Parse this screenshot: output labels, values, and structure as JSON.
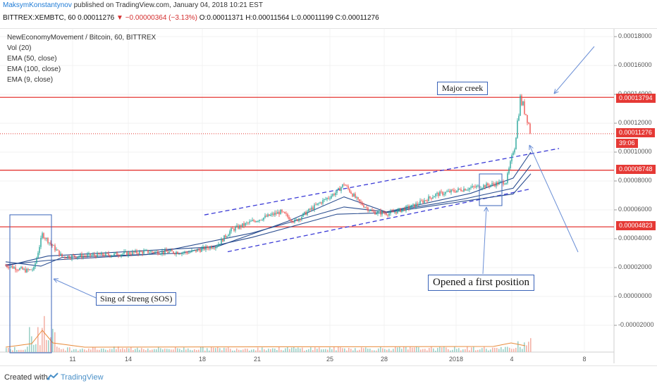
{
  "header": {
    "author": "MaksymKonstantynov",
    "published": "published on TradingView.com, January 04, 2018 10:21 EST",
    "symbol": "BITTREX:XEMBTC, 60",
    "last": "0.00011276",
    "change": "−0.00000364 (−3.13%)",
    "ohlc": "O:0.00011371 H:0.00011564 L:0.00011199 C:0.00011276"
  },
  "legend": {
    "title": "NewEconomyMovement / Bitcoin, 60, BITTREX",
    "vol": "Vol (20)",
    "ema50": "EMA (50, close)",
    "ema100": "EMA (100, close)",
    "ema9": "EMA (9, close)"
  },
  "price_tags": {
    "upper": "0.00013794",
    "current": "0.00011276",
    "timer": "39:06",
    "mid": "0.00008748",
    "lower": "0.00004823"
  },
  "annotations": {
    "major_creek": "Major creek",
    "opened": "Opened a first position",
    "sos": "Sing of Streng (SOS)"
  },
  "footer": {
    "created": "Created with",
    "brand": "TradingView"
  },
  "colors": {
    "resistance": "#e53935",
    "channel": "#3a3ad6",
    "ema": "#2a4d8f",
    "candle_up": "#26a69a",
    "candle_down": "#ef5350",
    "annotation": "#3a63b8"
  },
  "chart_data": {
    "type": "candlestick",
    "y_axis_ticks": [
      "0.00018000",
      "0.00016000",
      "0.00014000",
      "0.00012000",
      "0.00010000",
      "0.00008000",
      "0.00006000",
      "0.00004000",
      "0.00002000",
      "0.00000000",
      "-0.00002000"
    ],
    "x_axis_ticks": [
      "11",
      "14",
      "18",
      "21",
      "25",
      "28",
      "2018",
      "4",
      "8"
    ],
    "horizontal_levels": [
      0.00013794,
      8.748e-05,
      4.823e-05
    ],
    "current_price": 0.00011276,
    "price_path": [
      {
        "x": 0,
        "y": 2.15e-05
      },
      {
        "x": 30,
        "y": 1.78e-05
      },
      {
        "x": 40,
        "y": 1.9e-05
      },
      {
        "x": 52,
        "y": 4.3e-05
      },
      {
        "x": 62,
        "y": 3.75e-05
      },
      {
        "x": 80,
        "y": 2.75e-05
      },
      {
        "x": 150,
        "y": 2.9e-05
      },
      {
        "x": 200,
        "y": 3.1e-05
      },
      {
        "x": 260,
        "y": 3.05e-05
      },
      {
        "x": 300,
        "y": 3.55e-05
      },
      {
        "x": 320,
        "y": 4.6e-05
      },
      {
        "x": 350,
        "y": 5.2e-05
      },
      {
        "x": 390,
        "y": 5.85e-05
      },
      {
        "x": 410,
        "y": 5.2e-05
      },
      {
        "x": 440,
        "y": 6.3e-05
      },
      {
        "x": 470,
        "y": 7.25e-05
      },
      {
        "x": 480,
        "y": 7.8e-05
      },
      {
        "x": 500,
        "y": 6.6e-05
      },
      {
        "x": 520,
        "y": 5.85e-05
      },
      {
        "x": 545,
        "y": 5.75e-05
      },
      {
        "x": 580,
        "y": 6.3e-05
      },
      {
        "x": 610,
        "y": 7.05e-05
      },
      {
        "x": 650,
        "y": 7.45e-05
      },
      {
        "x": 690,
        "y": 7.75e-05
      },
      {
        "x": 710,
        "y": 7.95e-05
      },
      {
        "x": 722,
        "y": 0.000105
      },
      {
        "x": 730,
        "y": 0.000137
      },
      {
        "x": 740,
        "y": 0.000124
      },
      {
        "x": 745,
        "y": 0.0001128
      }
    ],
    "ema_paths": [
      [
        {
          "x": 0,
          "y": 2.4e-05
        },
        {
          "x": 50,
          "y": 2.1e-05
        },
        {
          "x": 80,
          "y": 2.7e-05
        },
        {
          "x": 250,
          "y": 3e-05
        },
        {
          "x": 350,
          "y": 4.1e-05
        },
        {
          "x": 470,
          "y": 5.7e-05
        },
        {
          "x": 540,
          "y": 5.8e-05
        },
        {
          "x": 650,
          "y": 6.6e-05
        },
        {
          "x": 720,
          "y": 7.1e-05
        },
        {
          "x": 745,
          "y": 8.5e-05
        }
      ],
      [
        {
          "x": 0,
          "y": 2.2e-05
        },
        {
          "x": 60,
          "y": 2.5e-05
        },
        {
          "x": 200,
          "y": 2.9e-05
        },
        {
          "x": 350,
          "y": 4.4e-05
        },
        {
          "x": 480,
          "y": 6.2e-05
        },
        {
          "x": 540,
          "y": 5.85e-05
        },
        {
          "x": 650,
          "y": 6.75e-05
        },
        {
          "x": 720,
          "y": 7.5e-05
        },
        {
          "x": 745,
          "y": 9.1e-05
        }
      ],
      [
        {
          "x": 0,
          "y": 2.1e-05
        },
        {
          "x": 60,
          "y": 2.8e-05
        },
        {
          "x": 300,
          "y": 3.45e-05
        },
        {
          "x": 400,
          "y": 5.2e-05
        },
        {
          "x": 480,
          "y": 6.9e-05
        },
        {
          "x": 540,
          "y": 5.85e-05
        },
        {
          "x": 660,
          "y": 7.15e-05
        },
        {
          "x": 720,
          "y": 8.2e-05
        },
        {
          "x": 745,
          "y": 0.0001
        }
      ]
    ],
    "channel_lines": [
      {
        "x1": 282,
        "y1": 5.65e-05,
        "x2": 785,
        "y2": 0.0001025
      },
      {
        "x1": 315,
        "y1": 3.1e-05,
        "x2": 745,
        "y2": 7.45e-05
      }
    ]
  }
}
